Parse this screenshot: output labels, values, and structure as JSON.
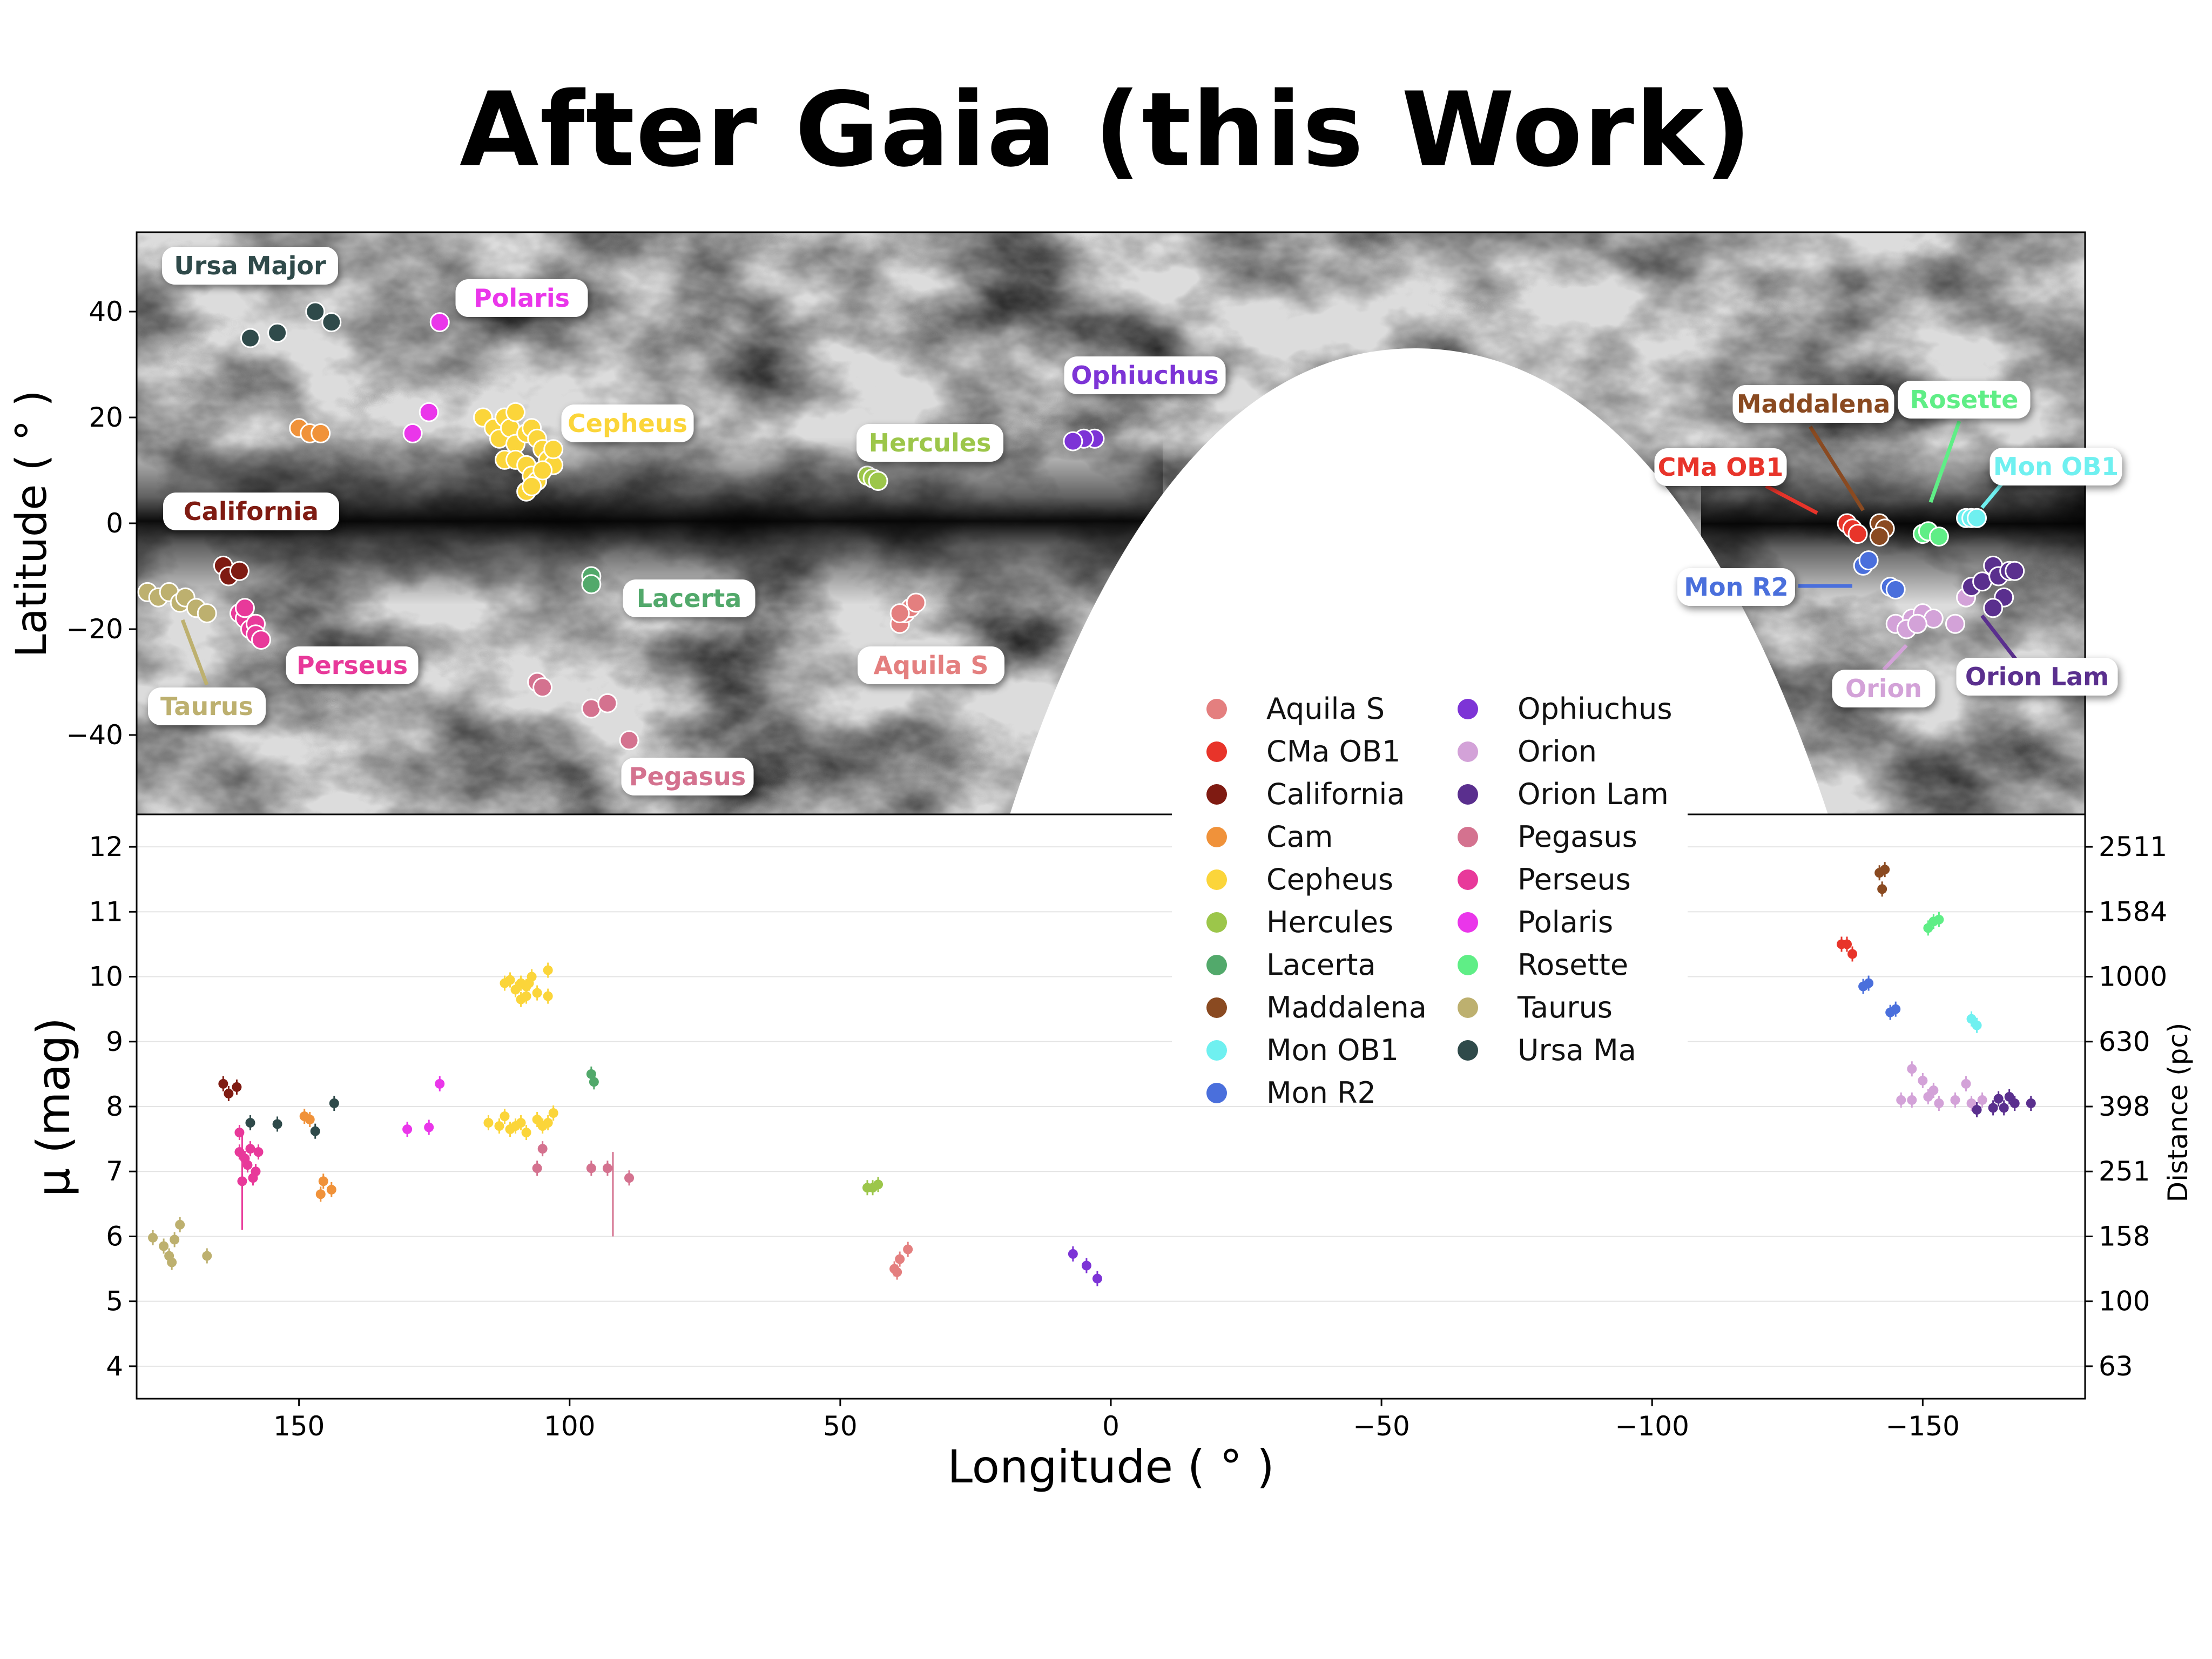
{
  "title": "After Gaia (this Work)",
  "colors": {
    "Aquila S": "#e47f7f",
    "CMa OB1": "#e8342a",
    "California": "#7f1b12",
    "Cam": "#f0923a",
    "Cepheus": "#fbd53a",
    "Hercules": "#9cc64a",
    "Lacerta": "#52a96b",
    "Maddalena": "#8a4a21",
    "Mon OB1": "#6ff0f0",
    "Mon R2": "#4a6fdc",
    "Ophiuchus": "#7d34d6",
    "Orion": "#d3a2d8",
    "Orion Lam": "#5a2f8e",
    "Pegasus": "#d4728f",
    "Perseus": "#e8399a",
    "Polaris": "#ea36ea",
    "Rosette": "#5fee86",
    "Taurus": "#bdb06f",
    "Ursa Major": "#2f4a4a"
  },
  "map": {
    "ylabel": "Latitude ( ° )",
    "yticks": [
      "40",
      "20",
      "0",
      "−20",
      "−40"
    ],
    "labels": [
      {
        "text": "Ursa Major",
        "group": "Ursa Major"
      },
      {
        "text": "Polaris",
        "group": "Polaris"
      },
      {
        "text": "Cepheus",
        "group": "Cepheus"
      },
      {
        "text": "Hercules",
        "group": "Hercules"
      },
      {
        "text": "Ophiuchus",
        "group": "Ophiuchus"
      },
      {
        "text": "California",
        "group": "California"
      },
      {
        "text": "Lacerta",
        "group": "Lacerta"
      },
      {
        "text": "Perseus",
        "group": "Perseus"
      },
      {
        "text": "Taurus",
        "group": "Taurus"
      },
      {
        "text": "Aquila S",
        "group": "Aquila S"
      },
      {
        "text": "Pegasus",
        "group": "Pegasus"
      },
      {
        "text": "Maddalena",
        "group": "Maddalena"
      },
      {
        "text": "Rosette",
        "group": "Rosette"
      },
      {
        "text": "CMa OB1",
        "group": "CMa OB1"
      },
      {
        "text": "Mon OB1",
        "group": "Mon OB1"
      },
      {
        "text": "Mon R2",
        "group": "Mon R2"
      },
      {
        "text": "Orion",
        "group": "Orion"
      },
      {
        "text": "Orion Lam",
        "group": "Orion Lam"
      }
    ]
  },
  "legend": {
    "col1": [
      "Aquila S",
      "CMa OB1",
      "California",
      "Cam",
      "Cepheus",
      "Hercules",
      "Lacerta",
      "Maddalena",
      "Mon OB1",
      "Mon R2"
    ],
    "col2": [
      "Ophiuchus",
      "Orion",
      "Orion Lam",
      "Pegasus",
      "Perseus",
      "Polaris",
      "Rosette",
      "Taurus",
      "Ursa Ma"
    ]
  },
  "axes": {
    "xlabel": "Longitude ( ° )",
    "ylabel": "μ (mag)",
    "y2label": "Distance (pc)",
    "xticks": [
      "150",
      "100",
      "50",
      "0",
      "−50",
      "−100",
      "−150"
    ],
    "yticks": [
      "12",
      "11",
      "10",
      "9",
      "8",
      "7",
      "6",
      "5",
      "4"
    ],
    "y2ticks": [
      "2511",
      "1584",
      "1000",
      "630",
      "398",
      "251",
      "158",
      "100",
      "63"
    ]
  },
  "chart_data": [
    {
      "type": "scatter",
      "panel": "sky map",
      "xlim": [
        180,
        -180
      ],
      "ylim": [
        -55,
        55
      ],
      "series": [
        {
          "name": "Aquila S",
          "points": [
            [
              39,
              -19
            ],
            [
              38,
              -17
            ],
            [
              37,
              -16
            ],
            [
              36,
              -15
            ],
            [
              39,
              -17
            ]
          ]
        },
        {
          "name": "CMa OB1",
          "points": [
            [
              -136,
              0
            ],
            [
              -137,
              -1
            ],
            [
              -138,
              -2
            ]
          ]
        },
        {
          "name": "California",
          "points": [
            [
              164,
              -8
            ],
            [
              163,
              -10
            ],
            [
              161,
              -9
            ]
          ]
        },
        {
          "name": "Cam",
          "points": [
            [
              150,
              18
            ],
            [
              148,
              17
            ],
            [
              146,
              17
            ]
          ]
        },
        {
          "name": "Cepheus",
          "points": [
            [
              116,
              20
            ],
            [
              114,
              18
            ],
            [
              113,
              16
            ],
            [
              112,
              20
            ],
            [
              111,
              18
            ],
            [
              110,
              21
            ],
            [
              110,
              15
            ],
            [
              108,
              17
            ],
            [
              107,
              18
            ],
            [
              106,
              16
            ],
            [
              105,
              14
            ],
            [
              104,
              12
            ],
            [
              103,
              11
            ],
            [
              112,
              12
            ],
            [
              110,
              12
            ],
            [
              108,
              11
            ],
            [
              107,
              9
            ],
            [
              106,
              8
            ],
            [
              108,
              6
            ],
            [
              107,
              7
            ],
            [
              105,
              10
            ],
            [
              103,
              14
            ]
          ]
        },
        {
          "name": "Hercules",
          "points": [
            [
              45,
              9
            ],
            [
              44,
              8.5
            ],
            [
              43,
              8
            ]
          ]
        },
        {
          "name": "Lacerta",
          "points": [
            [
              96,
              -10
            ],
            [
              96,
              -11.5
            ]
          ]
        },
        {
          "name": "Maddalena",
          "points": [
            [
              -142,
              0
            ],
            [
              -143,
              -1
            ],
            [
              -142,
              -2.5
            ]
          ]
        },
        {
          "name": "Mon OB1",
          "points": [
            [
              -158,
              1
            ],
            [
              -159,
              1
            ],
            [
              -160,
              1
            ]
          ]
        },
        {
          "name": "Mon R2",
          "points": [
            [
              -139,
              -8
            ],
            [
              -140,
              -7
            ],
            [
              -144,
              -12
            ],
            [
              -145,
              -12.5
            ]
          ]
        },
        {
          "name": "Ophiuchus",
          "points": [
            [
              3,
              16
            ],
            [
              5,
              16
            ],
            [
              7,
              15.5
            ]
          ]
        },
        {
          "name": "Orion",
          "points": [
            [
              -145,
              -19
            ],
            [
              -148,
              -18
            ],
            [
              -150,
              -17
            ],
            [
              -152,
              -18
            ],
            [
              -156,
              -19
            ],
            [
              -158,
              -14
            ],
            [
              -147,
              -20
            ],
            [
              -149,
              -19
            ]
          ]
        },
        {
          "name": "Orion Lam",
          "points": [
            [
              -159,
              -12
            ],
            [
              -161,
              -11
            ],
            [
              -163,
              -8
            ],
            [
              -164,
              -10
            ],
            [
              -165,
              -14
            ],
            [
              -166,
              -9
            ],
            [
              -163,
              -16
            ],
            [
              -167,
              -9
            ]
          ]
        },
        {
          "name": "Pegasus",
          "points": [
            [
              106,
              -30
            ],
            [
              105,
              -31
            ],
            [
              96,
              -35
            ],
            [
              93,
              -34
            ],
            [
              89,
              -41
            ]
          ]
        },
        {
          "name": "Perseus",
          "points": [
            [
              161,
              -17
            ],
            [
              160,
              -18
            ],
            [
              159,
              -20
            ],
            [
              158,
              -19
            ],
            [
              158,
              -21
            ],
            [
              157,
              -22
            ],
            [
              160,
              -16
            ]
          ]
        },
        {
          "name": "Polaris",
          "points": [
            [
              129,
              17
            ],
            [
              126,
              21
            ],
            [
              124,
              38
            ]
          ]
        },
        {
          "name": "Rosette",
          "points": [
            [
              -150,
              -2
            ],
            [
              -151,
              -1.5
            ],
            [
              -153,
              -2.5
            ]
          ]
        },
        {
          "name": "Taurus",
          "points": [
            [
              178,
              -13
            ],
            [
              176,
              -14
            ],
            [
              174,
              -13
            ],
            [
              172,
              -15
            ],
            [
              171,
              -14
            ],
            [
              169,
              -16
            ],
            [
              167,
              -17
            ]
          ]
        },
        {
          "name": "Ursa Major",
          "points": [
            [
              159,
              35
            ],
            [
              154,
              36
            ],
            [
              147,
              40
            ],
            [
              144,
              38
            ]
          ]
        }
      ]
    },
    {
      "type": "scatter",
      "panel": "distance modulus",
      "xlabel": "Longitude ( ° )",
      "ylabel": "μ (mag)",
      "xlim": [
        180,
        -180
      ],
      "ylim": [
        3.5,
        12.5
      ],
      "series": [
        {
          "name": "Aquila S",
          "points": [
            [
              40,
              5.5
            ],
            [
              39.5,
              5.45
            ],
            [
              39,
              5.65
            ],
            [
              37.5,
              5.8
            ]
          ]
        },
        {
          "name": "CMa OB1",
          "points": [
            [
              -135,
              10.5
            ],
            [
              -136,
              10.5
            ],
            [
              -137,
              10.35
            ]
          ]
        },
        {
          "name": "California",
          "points": [
            [
              164,
              8.35
            ],
            [
              163,
              8.2
            ],
            [
              161.5,
              8.3
            ]
          ]
        },
        {
          "name": "Cam",
          "points": [
            [
              149,
              7.85
            ],
            [
              148,
              7.8
            ],
            [
              146,
              6.65
            ],
            [
              145.5,
              6.85
            ],
            [
              144,
              6.72
            ]
          ]
        },
        {
          "name": "Cepheus",
          "points": [
            [
              112,
              9.9
            ],
            [
              111,
              9.95
            ],
            [
              109,
              9.9
            ],
            [
              108,
              9.85
            ],
            [
              107,
              10
            ],
            [
              106,
              9.75
            ],
            [
              104,
              10.1
            ],
            [
              110,
              9.8
            ],
            [
              109,
              9.65
            ],
            [
              108,
              9.7
            ],
            [
              107.5,
              9.9
            ],
            [
              104,
              9.7
            ],
            [
              115,
              7.75
            ],
            [
              113,
              7.7
            ],
            [
              112,
              7.85
            ],
            [
              111,
              7.65
            ],
            [
              110,
              7.7
            ],
            [
              109,
              7.75
            ],
            [
              108,
              7.6
            ],
            [
              106,
              7.8
            ],
            [
              105,
              7.7
            ],
            [
              104,
              7.75
            ],
            [
              103,
              7.9
            ]
          ]
        },
        {
          "name": "Hercules",
          "points": [
            [
              45,
              6.75
            ],
            [
              44,
              6.75
            ],
            [
              43,
              6.8
            ]
          ]
        },
        {
          "name": "Lacerta",
          "points": [
            [
              96,
              8.5
            ],
            [
              95.5,
              8.38
            ]
          ]
        },
        {
          "name": "Maddalena",
          "points": [
            [
              -142,
              11.6
            ],
            [
              -143,
              11.65
            ],
            [
              -142.5,
              11.35
            ]
          ]
        },
        {
          "name": "Mon OB1",
          "points": [
            [
              -159,
              9.35
            ],
            [
              -160,
              9.25
            ]
          ]
        },
        {
          "name": "Mon R2",
          "points": [
            [
              -139,
              9.85
            ],
            [
              -140,
              9.9
            ],
            [
              -144,
              9.45
            ],
            [
              -145,
              9.5
            ]
          ]
        },
        {
          "name": "Ophiuchus",
          "points": [
            [
              2.5,
              5.35
            ],
            [
              4.5,
              5.55
            ],
            [
              7,
              5.73
            ]
          ]
        },
        {
          "name": "Orion",
          "points": [
            [
              -146,
              8.1
            ],
            [
              -148,
              8.1
            ],
            [
              -148,
              8.58
            ],
            [
              -150,
              8.4
            ],
            [
              -151,
              8.15
            ],
            [
              -152,
              8.25
            ],
            [
              -153,
              8.05
            ],
            [
              -156,
              8.1
            ],
            [
              -158,
              8.35
            ],
            [
              -159,
              8.05
            ],
            [
              -161,
              8.1
            ]
          ]
        },
        {
          "name": "Orion Lam",
          "points": [
            [
              -160,
              7.95
            ],
            [
              -163,
              7.98
            ],
            [
              -164,
              8.12
            ],
            [
              -165,
              7.98
            ],
            [
              -166,
              8.15
            ],
            [
              -167,
              8.05
            ],
            [
              -170,
              8.05
            ]
          ]
        },
        {
          "name": "Pegasus",
          "points": [
            [
              106,
              7.05
            ],
            [
              105,
              7.35
            ],
            [
              96,
              7.05
            ],
            [
              93,
              7.05
            ],
            [
              89,
              6.9
            ]
          ]
        },
        {
          "name": "Perseus",
          "points": [
            [
              161,
              7.6
            ],
            [
              161,
              7.3
            ],
            [
              160,
              7.2
            ],
            [
              159,
              7.35
            ],
            [
              158,
              7.0
            ],
            [
              160.5,
              6.85
            ],
            [
              159.5,
              7.1
            ],
            [
              158.5,
              6.9
            ],
            [
              157.5,
              7.3
            ]
          ]
        },
        {
          "name": "Polaris",
          "points": [
            [
              130,
              7.65
            ],
            [
              126,
              7.68
            ],
            [
              124,
              8.35
            ]
          ]
        },
        {
          "name": "Rosette",
          "points": [
            [
              -151,
              10.75
            ],
            [
              -152,
              10.85
            ],
            [
              -153,
              10.88
            ]
          ]
        },
        {
          "name": "Taurus",
          "points": [
            [
              177,
              5.98
            ],
            [
              175,
              5.85
            ],
            [
              174,
              5.7
            ],
            [
              173.5,
              5.6
            ],
            [
              173,
              5.95
            ],
            [
              172,
              6.18
            ],
            [
              167,
              5.7
            ]
          ]
        },
        {
          "name": "Ursa Major",
          "points": [
            [
              159,
              7.75
            ],
            [
              154,
              7.73
            ],
            [
              147,
              7.62
            ],
            [
              143.5,
              8.05
            ]
          ]
        }
      ]
    }
  ]
}
